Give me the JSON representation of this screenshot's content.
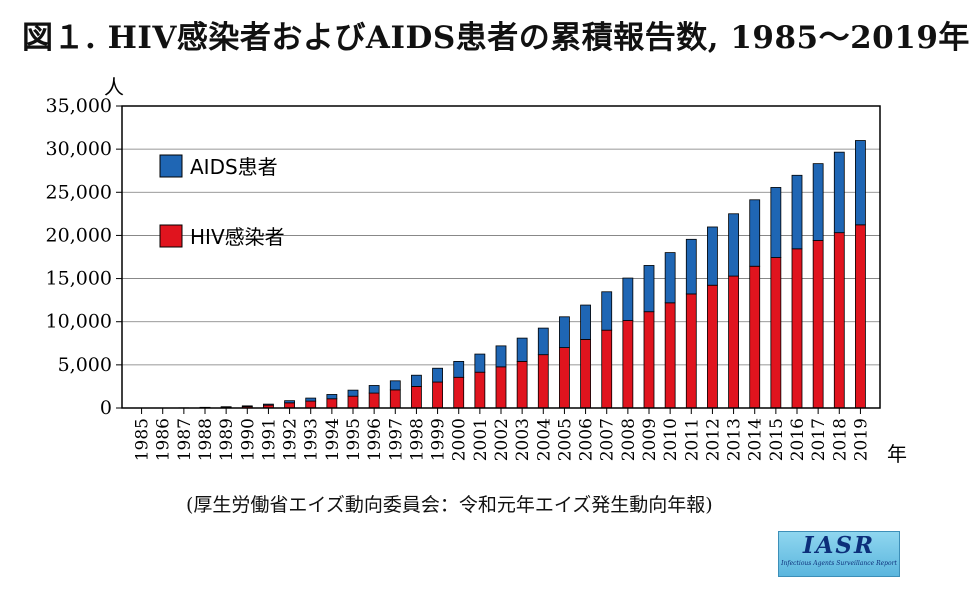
{
  "title": "図１. HIV感染者およびAIDS患者の累積報告数, 1985～2019年",
  "source": "(厚生労働省エイズ動向委員会：令和元年エイズ発生動向年報)",
  "logo": {
    "text": "IASR",
    "subtext": "Infectious Agents Surveillance Report"
  },
  "colors": {
    "aids": "#1f66b4",
    "hiv": "#e0141e",
    "axis": "#000000",
    "grid": "#777777"
  },
  "chart_data": {
    "type": "bar",
    "stacked": true,
    "ylabel": "人",
    "xlabel": "年",
    "ylim": [
      0,
      35000
    ],
    "yticks": [
      0,
      5000,
      10000,
      15000,
      20000,
      25000,
      30000,
      35000
    ],
    "ytick_labels": [
      "0",
      "5,000",
      "10,000",
      "15,000",
      "20,000",
      "25,000",
      "30,000",
      "35,000"
    ],
    "grid": true,
    "legend_position": "top-left",
    "categories": [
      "1985",
      "1986",
      "1987",
      "1988",
      "1989",
      "1990",
      "1991",
      "1992",
      "1993",
      "1994",
      "1995",
      "1996",
      "1997",
      "1998",
      "1999",
      "2000",
      "2001",
      "2002",
      "2003",
      "2004",
      "2005",
      "2006",
      "2007",
      "2008",
      "2009",
      "2010",
      "2011",
      "2012",
      "2013",
      "2014",
      "2015",
      "2016",
      "2017",
      "2018",
      "2019"
    ],
    "series": [
      {
        "name": "HIV感染者",
        "color": "#e0141e",
        "values": [
          0,
          0,
          20,
          50,
          100,
          170,
          330,
          600,
          800,
          1070,
          1370,
          1730,
          2100,
          2500,
          3010,
          3560,
          4150,
          4770,
          5400,
          6180,
          7000,
          7950,
          9020,
          10140,
          11160,
          12190,
          13220,
          14230,
          15290,
          16430,
          17440,
          18450,
          19410,
          20320,
          21230
        ]
      },
      {
        "name": "AIDS患者",
        "color": "#1f66b4",
        "values": [
          0,
          0,
          0,
          30,
          50,
          80,
          120,
          250,
          350,
          500,
          700,
          880,
          1050,
          1300,
          1600,
          1840,
          2100,
          2430,
          2700,
          3080,
          3570,
          3980,
          4450,
          4920,
          5360,
          5820,
          6330,
          6750,
          7220,
          7700,
          8120,
          8520,
          8910,
          9330,
          9770
        ]
      }
    ]
  }
}
